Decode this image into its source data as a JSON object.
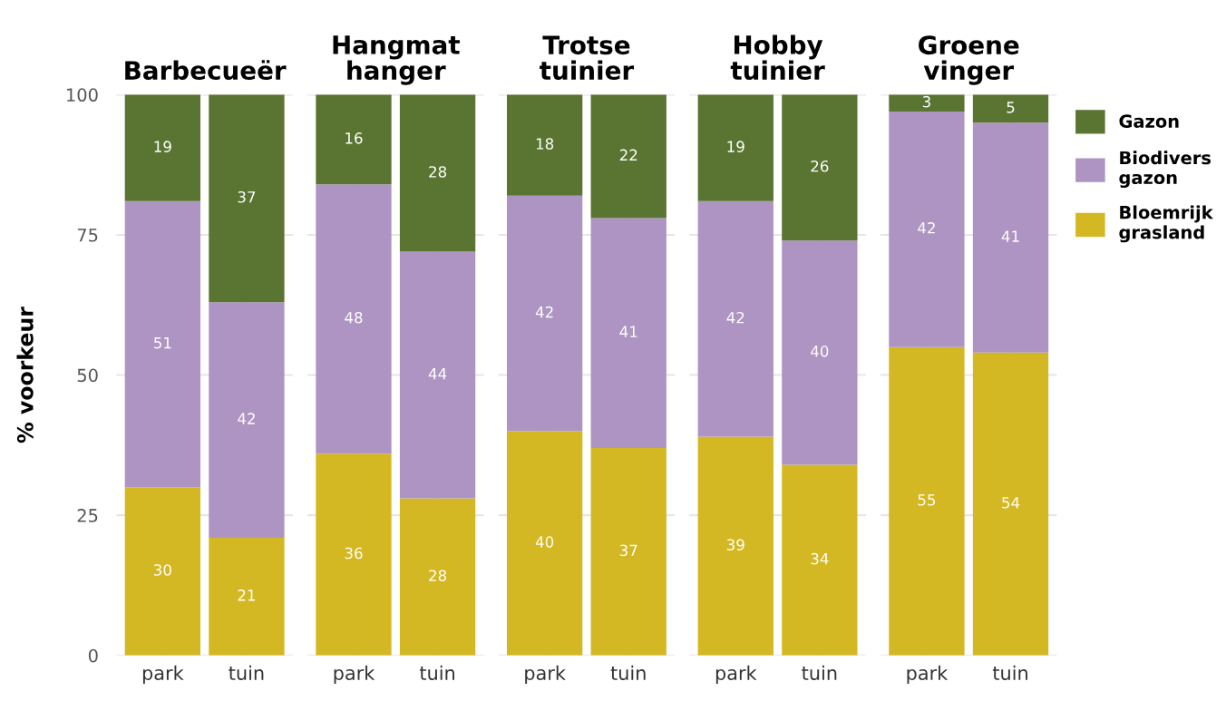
{
  "chart_data": [
    {
      "type": "bar",
      "stacked": true,
      "title": "Barbecueër",
      "ylabel": "% voorkeur",
      "categories": [
        "park",
        "tuin"
      ],
      "ylim": [
        0,
        100
      ],
      "yticks": [
        0,
        25,
        50,
        75,
        100
      ],
      "grid": true,
      "legend": false,
      "data_labels": true,
      "series": [
        {
          "color": "#d4b823",
          "values": [
            30,
            21
          ]
        },
        {
          "color": "#ae94c2",
          "values": [
            51,
            42
          ]
        },
        {
          "color": "#5a7532",
          "values": [
            19,
            37
          ]
        }
      ]
    },
    {
      "type": "bar",
      "stacked": true,
      "title": "Hangmat hanger",
      "categories": [
        "park",
        "tuin"
      ],
      "ylim": [
        0,
        100
      ],
      "tick_labels": "x",
      "grid": true,
      "legend": false,
      "data_labels": true,
      "series": [
        {
          "color": "#d4b823",
          "values": [
            36,
            28
          ]
        },
        {
          "color": "#ae94c2",
          "values": [
            48,
            44
          ]
        },
        {
          "color": "#5a7532",
          "values": [
            16,
            28
          ]
        }
      ]
    },
    {
      "type": "bar",
      "stacked": true,
      "title": "Trotse tuinier",
      "categories": [
        "park",
        "tuin"
      ],
      "ylim": [
        0,
        100
      ],
      "tick_labels": "x",
      "grid": true,
      "legend": false,
      "data_labels": true,
      "series": [
        {
          "color": "#d4b823",
          "values": [
            40,
            37
          ]
        },
        {
          "color": "#ae94c2",
          "values": [
            42,
            41
          ]
        },
        {
          "color": "#5a7532",
          "values": [
            18,
            22
          ]
        }
      ]
    },
    {
      "type": "bar",
      "stacked": true,
      "title": "Hobby tuinier",
      "categories": [
        "park",
        "tuin"
      ],
      "ylim": [
        0,
        100
      ],
      "tick_labels": "x",
      "grid": true,
      "legend": false,
      "data_labels": true,
      "series": [
        {
          "color": "#d4b823",
          "values": [
            39,
            34
          ]
        },
        {
          "color": "#ae94c2",
          "values": [
            42,
            40
          ]
        },
        {
          "color": "#5a7532",
          "values": [
            19,
            26
          ]
        }
      ]
    },
    {
      "type": "bar",
      "stacked": true,
      "title": "Groene vinger",
      "categories": [
        "park",
        "tuin"
      ],
      "ylim": [
        0,
        100
      ],
      "tick_labels": "x",
      "grid": true,
      "legend": "right",
      "data_labels": true,
      "series": [
        {
          "name": "Bloemrijk grasland",
          "color": "#d4b823",
          "values": [
            55,
            54
          ]
        },
        {
          "name": "Biodivers gazon",
          "color": "#ae94c2",
          "values": [
            42,
            41
          ]
        },
        {
          "name": "Gazon",
          "color": "#5a7532",
          "values": [
            3,
            5
          ]
        }
      ]
    }
  ]
}
